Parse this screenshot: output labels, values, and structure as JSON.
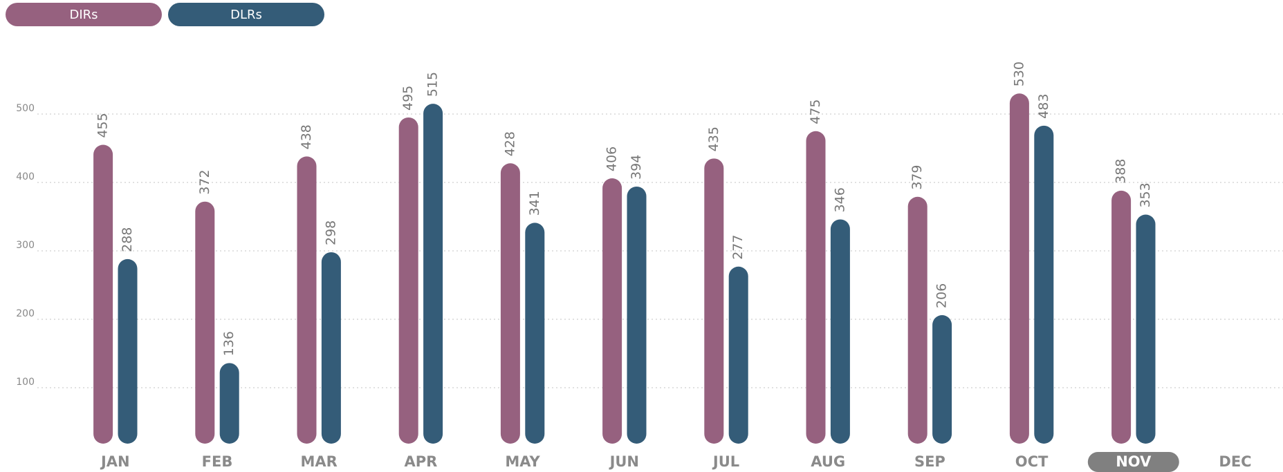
{
  "chart_data": {
    "type": "bar",
    "categories": [
      "JAN",
      "FEB",
      "MAR",
      "APR",
      "MAY",
      "JUN",
      "JUL",
      "AUG",
      "SEP",
      "OCT",
      "NOV",
      "DEC"
    ],
    "series": [
      {
        "name": "DIRs",
        "color": "#96617f",
        "values": [
          455,
          372,
          438,
          495,
          428,
          406,
          435,
          475,
          379,
          530,
          388,
          null
        ]
      },
      {
        "name": "DLRs",
        "color": "#345c78",
        "values": [
          288,
          136,
          298,
          515,
          341,
          394,
          277,
          346,
          206,
          483,
          353,
          null
        ]
      }
    ],
    "ylim": [
      0,
      600
    ],
    "yticks": [
      100,
      200,
      300,
      400,
      500
    ],
    "grid": true,
    "highlight": 10
  }
}
